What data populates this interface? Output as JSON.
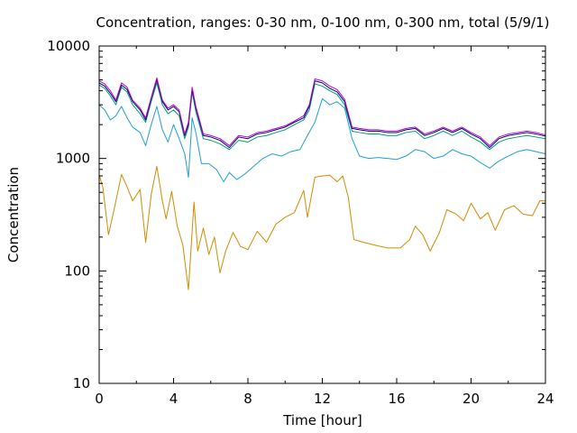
{
  "chart_data": {
    "type": "line",
    "title": "Concentration, ranges: 0-30 nm, 0-100 nm, 0-300 nm, total (5/9/1)",
    "xlabel": "Time [hour]",
    "ylabel": "Concentration",
    "xlim": [
      0,
      24
    ],
    "ylim": [
      10,
      10000
    ],
    "yscale": "log",
    "grid": false,
    "legend": "none",
    "xticks": [
      "0",
      "4",
      "8",
      "12",
      "16",
      "20",
      "24"
    ],
    "yticks": [
      "10",
      "100",
      "1000",
      "10000"
    ],
    "series": [
      {
        "color": "#d08c00",
        "x": [
          0,
          0.2,
          0.5,
          0.8,
          1.2,
          1.5,
          1.8,
          2.2,
          2.5,
          2.8,
          3.1,
          3.4,
          3.6,
          3.9,
          4.2,
          4.5,
          4.8,
          5.1,
          5.3,
          5.6,
          5.9,
          6.2,
          6.5,
          6.8,
          7.2,
          7.6,
          8.0,
          8.5,
          9.0,
          9.5,
          10.0,
          10.5,
          11.0,
          11.2,
          11.6,
          12.0,
          12.4,
          12.8,
          13.1,
          13.4,
          13.7,
          14.2,
          14.8,
          15.5,
          16.2,
          16.7,
          17.0,
          17.4,
          17.8,
          18.3,
          18.7,
          19.2,
          19.6,
          20.0,
          20.5,
          20.9,
          21.3,
          21.8,
          22.3,
          22.8,
          23.3,
          23.7,
          24.0
        ],
        "y": [
          720,
          550,
          210,
          350,
          720,
          560,
          420,
          530,
          180,
          480,
          850,
          420,
          290,
          510,
          250,
          170,
          68,
          410,
          150,
          240,
          140,
          200,
          96,
          150,
          220,
          165,
          155,
          225,
          180,
          260,
          300,
          330,
          520,
          300,
          680,
          700,
          710,
          620,
          700,
          450,
          190,
          180,
          170,
          160,
          160,
          190,
          250,
          210,
          150,
          220,
          350,
          320,
          280,
          400,
          290,
          330,
          230,
          350,
          380,
          320,
          310,
          420,
          420
        ]
      },
      {
        "color": "#1f9fd6",
        "x": [
          0,
          0.3,
          0.6,
          0.9,
          1.2,
          1.5,
          1.8,
          2.2,
          2.5,
          2.8,
          3.1,
          3.4,
          3.7,
          4.0,
          4.3,
          4.6,
          4.8,
          5.0,
          5.2,
          5.5,
          5.9,
          6.3,
          6.7,
          7.0,
          7.4,
          7.8,
          8.3,
          8.8,
          9.3,
          9.8,
          10.3,
          10.8,
          11.2,
          11.6,
          12.0,
          12.4,
          12.8,
          13.2,
          13.6,
          14.0,
          14.5,
          15.0,
          15.5,
          16.0,
          16.5,
          17.0,
          17.5,
          18.0,
          18.5,
          19.0,
          19.5,
          20.0,
          20.5,
          21.0,
          21.5,
          22.0,
          22.5,
          23.0,
          23.5,
          24.0
        ],
        "y": [
          3000,
          2700,
          2200,
          2400,
          2900,
          2300,
          1900,
          1700,
          1300,
          2000,
          2900,
          1800,
          1400,
          2000,
          1500,
          1100,
          680,
          2300,
          1700,
          900,
          900,
          800,
          620,
          750,
          650,
          720,
          850,
          1000,
          1100,
          1050,
          1150,
          1200,
          1600,
          2100,
          3400,
          3000,
          3200,
          2800,
          1500,
          1050,
          1000,
          1020,
          1000,
          980,
          1050,
          1200,
          1150,
          1000,
          1050,
          1200,
          1100,
          1050,
          920,
          820,
          950,
          1050,
          1150,
          1200,
          1150,
          1100
        ]
      },
      {
        "color": "#009e73",
        "x": [
          0,
          0.3,
          0.6,
          0.9,
          1.2,
          1.5,
          1.8,
          2.2,
          2.5,
          2.8,
          3.1,
          3.4,
          3.7,
          4.0,
          4.3,
          4.6,
          4.8,
          5.0,
          5.2,
          5.6,
          6.0,
          6.5,
          7.0,
          7.5,
          8.0,
          8.5,
          9.0,
          9.5,
          10.0,
          10.5,
          11.0,
          11.3,
          11.6,
          12.0,
          12.4,
          12.8,
          13.2,
          13.6,
          14.0,
          14.5,
          15.0,
          15.5,
          16.0,
          16.5,
          17.0,
          17.5,
          18.0,
          18.5,
          19.0,
          19.5,
          20.0,
          20.5,
          21.0,
          21.5,
          22.0,
          22.5,
          23.0,
          23.5,
          24.0
        ],
        "y": [
          4500,
          4200,
          3600,
          3000,
          4300,
          3900,
          3000,
          2500,
          2100,
          3200,
          4700,
          3000,
          2500,
          2700,
          2400,
          1500,
          1900,
          3900,
          2600,
          1500,
          1450,
          1350,
          1200,
          1450,
          1400,
          1550,
          1600,
          1700,
          1800,
          2000,
          2200,
          2700,
          4600,
          4400,
          4000,
          3700,
          3000,
          1750,
          1700,
          1650,
          1650,
          1600,
          1600,
          1700,
          1750,
          1500,
          1600,
          1750,
          1600,
          1750,
          1550,
          1400,
          1200,
          1400,
          1500,
          1550,
          1600,
          1550,
          1500
        ]
      },
      {
        "color": "#000080",
        "x": [
          0,
          0.3,
          0.6,
          0.9,
          1.2,
          1.5,
          1.8,
          2.2,
          2.5,
          2.8,
          3.1,
          3.4,
          3.7,
          4.0,
          4.3,
          4.6,
          4.8,
          5.0,
          5.2,
          5.6,
          6.0,
          6.5,
          7.0,
          7.5,
          8.0,
          8.5,
          9.0,
          9.5,
          10.0,
          10.5,
          11.0,
          11.3,
          11.6,
          12.0,
          12.4,
          12.8,
          13.2,
          13.6,
          14.0,
          14.5,
          15.0,
          15.5,
          16.0,
          16.5,
          17.0,
          17.5,
          18.0,
          18.5,
          19.0,
          19.5,
          20.0,
          20.5,
          21.0,
          21.5,
          22.0,
          22.5,
          23.0,
          23.5,
          24.0
        ],
        "y": [
          4700,
          4400,
          3800,
          3200,
          4500,
          4100,
          3200,
          2700,
          2200,
          3400,
          5000,
          3200,
          2700,
          2900,
          2600,
          1600,
          2000,
          4100,
          2800,
          1600,
          1550,
          1450,
          1250,
          1550,
          1500,
          1650,
          1700,
          1800,
          1900,
          2100,
          2300,
          2900,
          4900,
          4700,
          4200,
          3900,
          3200,
          1850,
          1800,
          1750,
          1750,
          1700,
          1700,
          1800,
          1850,
          1600,
          1700,
          1850,
          1700,
          1850,
          1650,
          1500,
          1250,
          1500,
          1600,
          1650,
          1700,
          1650,
          1580
        ]
      },
      {
        "color": "#c000c0",
        "x": [
          0,
          0.3,
          0.6,
          0.9,
          1.2,
          1.5,
          1.8,
          2.2,
          2.5,
          2.8,
          3.1,
          3.4,
          3.7,
          4.0,
          4.3,
          4.6,
          4.8,
          5.0,
          5.2,
          5.6,
          6.0,
          6.5,
          7.0,
          7.5,
          8.0,
          8.5,
          9.0,
          9.5,
          10.0,
          10.5,
          11.0,
          11.3,
          11.6,
          12.0,
          12.4,
          12.8,
          13.2,
          13.6,
          14.0,
          14.5,
          15.0,
          15.5,
          16.0,
          16.5,
          17.0,
          17.5,
          18.0,
          18.5,
          19.0,
          19.5,
          20.0,
          20.5,
          21.0,
          21.5,
          22.0,
          22.5,
          23.0,
          23.5,
          24.0
        ],
        "y": [
          4900,
          4600,
          4000,
          3300,
          4700,
          4300,
          3300,
          2800,
          2300,
          3500,
          5200,
          3300,
          2800,
          3000,
          2700,
          1650,
          2100,
          4300,
          2900,
          1650,
          1600,
          1500,
          1300,
          1600,
          1550,
          1700,
          1750,
          1850,
          1950,
          2150,
          2400,
          3000,
          5100,
          4900,
          4400,
          4100,
          3350,
          1900,
          1850,
          1800,
          1800,
          1750,
          1750,
          1850,
          1900,
          1650,
          1750,
          1900,
          1750,
          1900,
          1700,
          1550,
          1300,
          1550,
          1650,
          1700,
          1750,
          1700,
          1620
        ]
      }
    ]
  }
}
